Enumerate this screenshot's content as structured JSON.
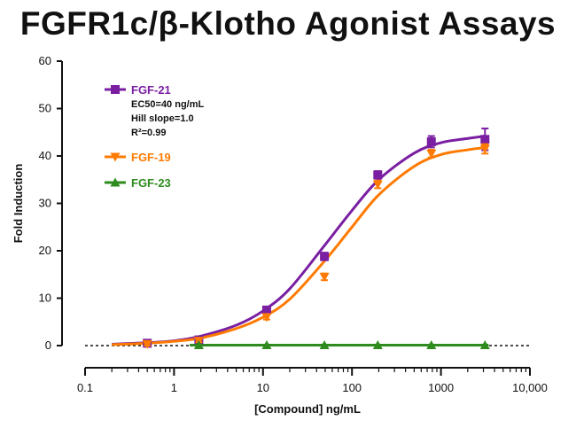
{
  "chart_data": {
    "type": "line",
    "title": "FGFR1c/β-Klotho Agonist Assays",
    "xlabel": "[Compound] ng/mL",
    "ylabel": "Fold Induction",
    "xscale": "log",
    "xlim": [
      0.1,
      10000
    ],
    "ylim": [
      0,
      60
    ],
    "x_ticks": [
      0.1,
      1,
      10,
      100,
      1000,
      10000
    ],
    "x_tick_labels": [
      "0.1",
      "1",
      "10",
      "100",
      "1000",
      "10,000"
    ],
    "y_ticks": [
      0,
      10,
      20,
      30,
      40,
      50,
      60
    ],
    "y_tick_labels": [
      "0",
      "10",
      "20",
      "30",
      "40",
      "50",
      "60"
    ],
    "grid": false,
    "legend_position": "top-left",
    "series": [
      {
        "name": "FGF-21",
        "color": "#7a1fa2",
        "marker": "square",
        "stats": [
          "EC50=40 ng/mL",
          "Hill slope=1.0",
          "R²=0.99"
        ],
        "x": [
          0.5,
          1.9,
          11,
          49,
          195,
          780,
          3125
        ],
        "y": [
          0.5,
          1.2,
          7.5,
          18.8,
          36,
          43,
          43.5
        ],
        "err": [
          0.3,
          0.4,
          0.6,
          0.8,
          0.8,
          1.2,
          2.3
        ],
        "fit_x": [
          0.2,
          0.5,
          1,
          2,
          5,
          10,
          20,
          50,
          100,
          200,
          500,
          1000,
          2000,
          3200
        ],
        "fit_y": [
          0.3,
          0.6,
          1.0,
          2.0,
          4.3,
          7.3,
          12.0,
          21.3,
          28.5,
          35.0,
          40.6,
          42.8,
          43.7,
          44.2
        ]
      },
      {
        "name": "FGF-19",
        "color": "#ff7a00",
        "marker": "triangle-down",
        "x": [
          0.5,
          1.9,
          11,
          49,
          195,
          780,
          3125
        ],
        "y": [
          0.3,
          1.0,
          6.0,
          14.5,
          34,
          40.5,
          41.5
        ],
        "err": [
          0.3,
          0.3,
          0.5,
          0.7,
          0.8,
          0.8,
          1.0
        ],
        "fit_x": [
          0.2,
          0.5,
          1,
          2,
          5,
          10,
          20,
          50,
          100,
          200,
          500,
          1000,
          2000,
          3200
        ],
        "fit_y": [
          0.2,
          0.5,
          0.9,
          1.6,
          3.6,
          6.0,
          9.8,
          18.0,
          25.0,
          31.8,
          37.8,
          40.3,
          41.3,
          41.8
        ]
      },
      {
        "name": "FGF-23",
        "color": "#2e8b1e",
        "marker": "triangle-up",
        "x": [
          1.9,
          11,
          49,
          195,
          780,
          3125
        ],
        "y": [
          0.1,
          0.1,
          0.1,
          0.1,
          0.1,
          0.1
        ],
        "err": [
          0.1,
          0.1,
          0.1,
          0.1,
          0.1,
          0.1
        ],
        "fit_x": [
          1.5,
          3200
        ],
        "fit_y": [
          0.1,
          0.1
        ]
      }
    ]
  }
}
